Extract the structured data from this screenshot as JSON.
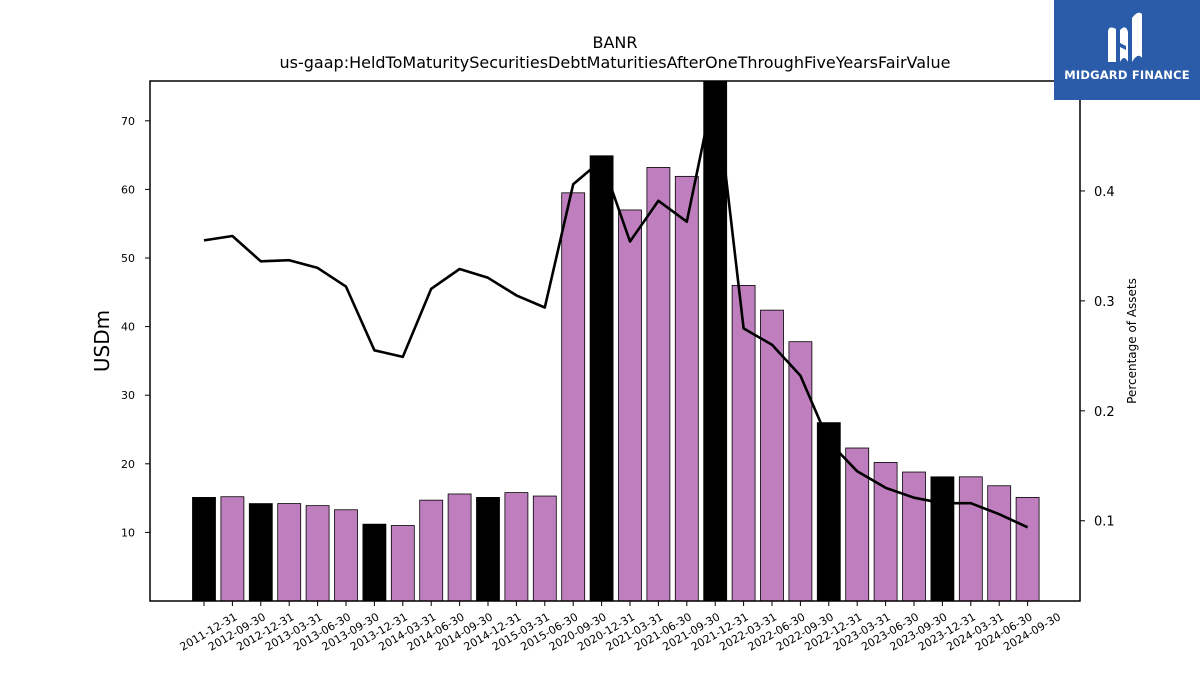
{
  "chart_data": {
    "type": "bar",
    "title": "BANR",
    "subtitle": "us-gaap:HeldToMaturitySecuritiesDebtMaturitiesAfterOneThroughFiveYearsFairValue",
    "ylabel": "USDm",
    "y2label": "Percentage of Assets",
    "categories": [
      "2011-12-31",
      "2012-09-30",
      "2012-12-31",
      "2013-03-31",
      "2013-06-30",
      "2013-09-30",
      "2013-12-31",
      "2014-03-31",
      "2014-06-30",
      "2014-09-30",
      "2014-12-31",
      "2015-03-31",
      "2015-06-30",
      "2020-09-30",
      "2020-12-31",
      "2021-03-31",
      "2021-06-30",
      "2021-09-30",
      "2021-12-31",
      "2022-03-31",
      "2022-06-30",
      "2022-09-30",
      "2022-12-31",
      "2023-03-31",
      "2023-06-30",
      "2023-09-30",
      "2023-12-31",
      "2024-03-31",
      "2024-06-30",
      "2024-09-30"
    ],
    "series": [
      {
        "type": "bar",
        "axis": "left",
        "values": [
          15.1,
          15.2,
          14.2,
          14.2,
          13.9,
          13.3,
          11.2,
          11.0,
          14.7,
          15.6,
          15.1,
          15.8,
          15.3,
          59.5,
          64.9,
          57.0,
          63.2,
          61.9,
          76.0,
          46.0,
          42.4,
          37.8,
          26.0,
          22.3,
          20.2,
          18.8,
          18.1,
          18.1,
          16.8,
          15.1
        ],
        "highlight": [
          true,
          false,
          true,
          false,
          false,
          false,
          true,
          false,
          false,
          false,
          true,
          false,
          false,
          false,
          true,
          false,
          false,
          false,
          true,
          false,
          false,
          false,
          true,
          false,
          false,
          false,
          true,
          false,
          false,
          false
        ]
      },
      {
        "type": "line",
        "axis": "right",
        "values": [
          0.355,
          0.359,
          0.336,
          0.337,
          0.33,
          0.313,
          0.255,
          0.249,
          0.311,
          0.329,
          0.321,
          0.305,
          0.294,
          0.406,
          0.428,
          0.354,
          0.391,
          0.372,
          0.497,
          0.275,
          0.26,
          0.232,
          0.172,
          0.145,
          0.13,
          0.121,
          0.116,
          0.116,
          0.106,
          0.094
        ]
      }
    ],
    "ylim": [
      0,
      75.8
    ],
    "y2lim": [
      0.027,
      0.5
    ],
    "yticks": [
      10,
      20,
      30,
      40,
      50,
      60,
      70
    ],
    "y2ticks": [
      0.1,
      0.2,
      0.3,
      0.4
    ],
    "colors": {
      "bar": "#bf7fbf",
      "highlight": "#000000",
      "line": "#000000"
    },
    "grid": false
  },
  "logo": {
    "text": "MIDGARD FINANCE"
  }
}
